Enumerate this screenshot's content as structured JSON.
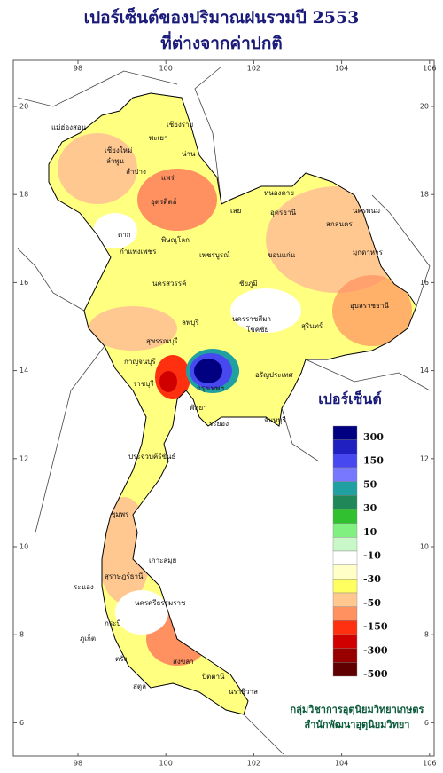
{
  "header": {
    "title": [
      "เปอร์เซ็นต์ของปริมาณฝนรวมปี 2553",
      "ที่ต่างจากค่าปกติ"
    ]
  },
  "map": {
    "lon_ticks": [
      98,
      100,
      102,
      104,
      106
    ],
    "lat_ticks": [
      6,
      8,
      10,
      12,
      14,
      16,
      18,
      20
    ],
    "places": [
      "เชียงราย",
      "แม่ฮ่องสอน",
      "เชียงใหม่",
      "ลำพูน",
      "ลำปาง",
      "พะเยา",
      "น่าน",
      "แพร่",
      "เลย",
      "หนองคาย",
      "อุดรธานี",
      "นครพนม",
      "สกลนคร",
      "มุกดาหาร",
      "ตาก",
      "อุตรดิตถ์",
      "พิษณุโลก",
      "กำแพงเพชร",
      "เพชรบูรณ์",
      "ขอนแก่น",
      "ชัยภูมิ",
      "นครสวรรค์",
      "อุบลราชธานี",
      "สุรินทร์",
      "นครราชสีมา",
      "โชคชัย",
      "ลพบุรี",
      "สุพรรณบุรี",
      "กาญจนบุรี",
      "กรุงเทพฯ",
      "ราชบุรี",
      "อรัญประเทศ",
      "ระยอง",
      "จันทบุรี",
      "พัทยา",
      "ประจวบคีรีขันธ์",
      "ชุมพร",
      "ระนอง",
      "สุราษฎร์ธานี",
      "เกาะสมุย",
      "นครศรีธรรมราช",
      "กระบี่",
      "ภูเก็ต",
      "ตรัง",
      "สงขลา",
      "ปัตตานี",
      "นราธิวาส",
      "สตูล"
    ]
  },
  "legend": {
    "title": "เปอร์เซ็นต์",
    "labels": [
      300,
      150,
      50,
      30,
      10,
      -10,
      -30,
      -50,
      -150,
      -300,
      -500
    ],
    "colors": [
      "#000080",
      "#2020c0",
      "#4848f0",
      "#7878ff",
      "#20a0a0",
      "#208858",
      "#30c030",
      "#80f080",
      "#c8f8c8",
      "#ffffff",
      "#ffffc8",
      "#ffff60",
      "#ffc890",
      "#ff9060",
      "#ff3010",
      "#d00000",
      "#980000",
      "#600000"
    ]
  },
  "footer": [
    "กลุ่มวิชาการอุตุนิยมวิทยาเกษตร",
    "สำนักพัฒนาอุตุนิยมวิทยา"
  ]
}
